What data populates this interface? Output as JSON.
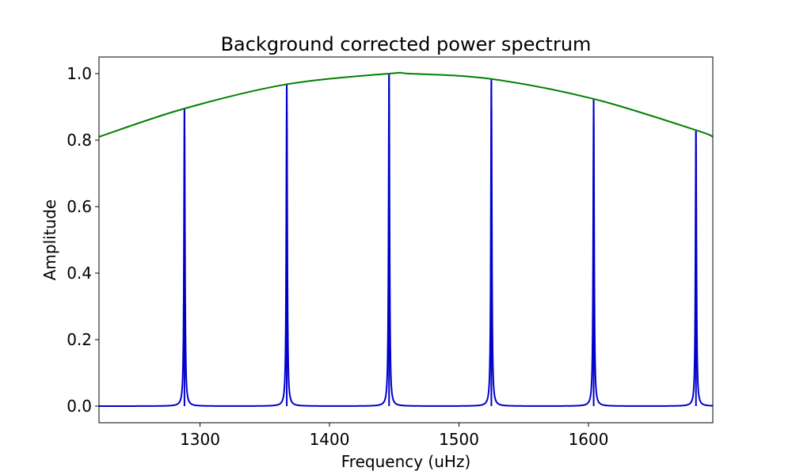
{
  "chart_data": {
    "type": "line",
    "title": "Background corrected power spectrum",
    "xlabel": "Frequency (uHz)",
    "ylabel": "Amplitude",
    "xlim": [
      1222,
      1696
    ],
    "ylim": [
      -0.05,
      1.05
    ],
    "xticks": [
      1300,
      1400,
      1500,
      1600
    ],
    "yticks": [
      0.0,
      0.2,
      0.4,
      0.6,
      0.8,
      1.0
    ],
    "grid": false,
    "series": [
      {
        "color": "#0000cc",
        "kind": "lorentzian-peaks",
        "peaks": [
          {
            "x": 1288,
            "y": 0.895
          },
          {
            "x": 1367,
            "y": 0.968
          },
          {
            "x": 1446,
            "y": 1.0
          },
          {
            "x": 1525,
            "y": 0.984
          },
          {
            "x": 1604,
            "y": 0.924
          },
          {
            "x": 1683,
            "y": 0.83
          }
        ],
        "baseline": 0.0
      },
      {
        "color": "#008000",
        "kind": "envelope",
        "points": [
          {
            "x": 1222,
            "y": 0.81
          },
          {
            "x": 1288,
            "y": 0.895
          },
          {
            "x": 1367,
            "y": 0.968
          },
          {
            "x": 1446,
            "y": 1.0
          },
          {
            "x": 1462,
            "y": 1.0
          },
          {
            "x": 1525,
            "y": 0.984
          },
          {
            "x": 1604,
            "y": 0.924
          },
          {
            "x": 1683,
            "y": 0.83
          },
          {
            "x": 1696,
            "y": 0.81
          }
        ]
      }
    ]
  }
}
